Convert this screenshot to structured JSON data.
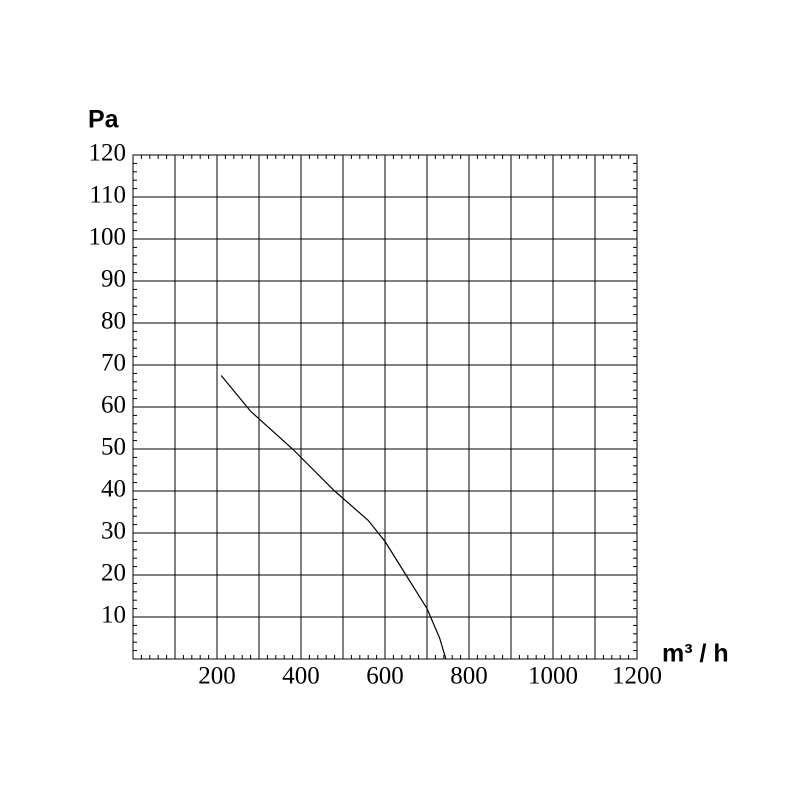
{
  "chart_data": {
    "type": "line",
    "y_label": "Pa",
    "x_label": "m³ / h",
    "x": [
      210,
      280,
      380,
      480,
      560,
      600,
      650,
      700,
      730,
      745
    ],
    "series": [
      {
        "color": "#000000",
        "values": [
          67.5,
          59,
          50,
          40,
          33,
          28,
          20,
          12,
          5,
          0
        ]
      }
    ],
    "xlim": [
      0,
      1200
    ],
    "xticks": [
      200,
      400,
      600,
      800,
      1000,
      1200
    ],
    "xgrid": [
      100,
      300,
      500,
      700,
      900,
      1100
    ],
    "ylim": [
      0,
      120
    ],
    "yticks": [
      10,
      20,
      30,
      40,
      50,
      60,
      70,
      80,
      90,
      100,
      110,
      120
    ],
    "xminor_step": 20,
    "yminor_step": 2,
    "grid": true
  }
}
